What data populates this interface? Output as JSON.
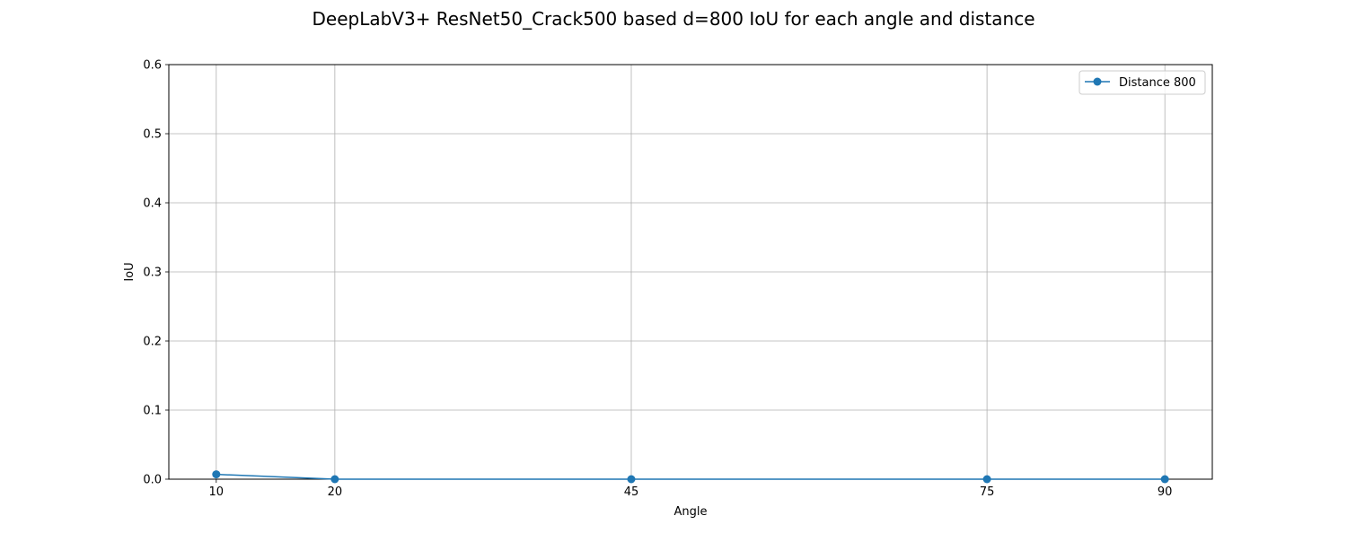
{
  "chart_data": {
    "type": "line",
    "title": "DeepLabV3+ ResNet50_Crack500 based d=800 IoU for each angle and distance",
    "xlabel": "Angle",
    "ylabel": "IoU",
    "x": [
      10,
      20,
      45,
      75,
      90
    ],
    "xticks": [
      "10",
      "20",
      "45",
      "75",
      "90"
    ],
    "xlim": [
      6,
      94
    ],
    "ylim": [
      0,
      0.6
    ],
    "yticks": [
      "0.0",
      "0.1",
      "0.2",
      "0.3",
      "0.4",
      "0.5",
      "0.6"
    ],
    "grid": true,
    "legend_position": "top-right",
    "series": [
      {
        "name": "Distance 800",
        "color": "#1f77b4",
        "marker": "circle",
        "values": [
          0.007,
          0.0,
          0.0,
          0.0,
          0.0
        ]
      }
    ]
  }
}
